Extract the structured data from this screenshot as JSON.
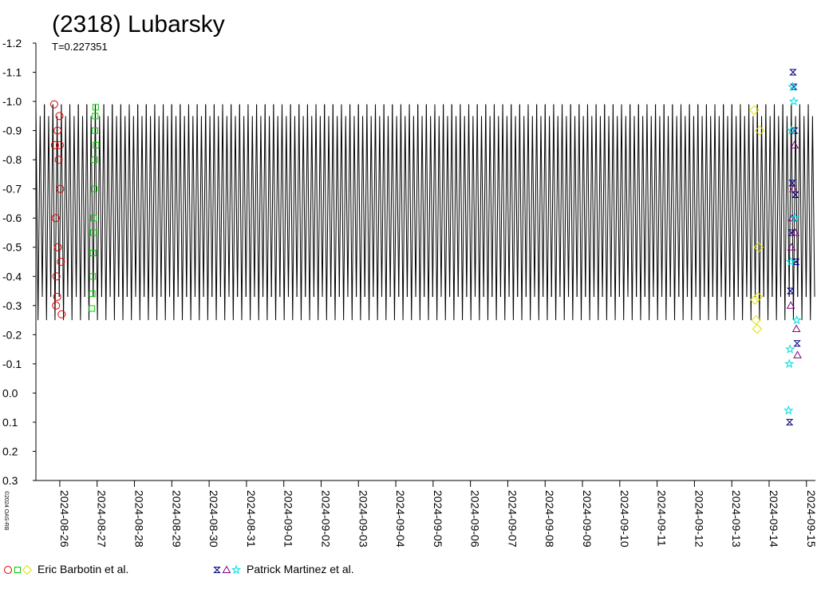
{
  "chart_data": {
    "type": "lightcurve",
    "title": "(2318) Lubarsky",
    "period": {
      "value": 0.227351,
      "label": "T=0.227351"
    },
    "credit": "©2024 OAS-RB",
    "xlim": [
      -0.64,
      20.24
    ],
    "xticks": [
      {
        "value": 0,
        "label": "2024-08-26"
      },
      {
        "value": 1,
        "label": "2024-08-27"
      },
      {
        "value": 2,
        "label": "2024-08-28"
      },
      {
        "value": 3,
        "label": "2024-08-29"
      },
      {
        "value": 4,
        "label": "2024-08-30"
      },
      {
        "value": 5,
        "label": "2024-08-31"
      },
      {
        "value": 6,
        "label": "2024-09-01"
      },
      {
        "value": 7,
        "label": "2024-09-02"
      },
      {
        "value": 8,
        "label": "2024-09-03"
      },
      {
        "value": 9,
        "label": "2024-09-04"
      },
      {
        "value": 10,
        "label": "2024-09-05"
      },
      {
        "value": 11,
        "label": "2024-09-06"
      },
      {
        "value": 12,
        "label": "2024-09-07"
      },
      {
        "value": 13,
        "label": "2024-09-08"
      },
      {
        "value": 14,
        "label": "2024-09-09"
      },
      {
        "value": 15,
        "label": "2024-09-10"
      },
      {
        "value": 16,
        "label": "2024-09-11"
      },
      {
        "value": 17,
        "label": "2024-09-12"
      },
      {
        "value": 18,
        "label": "2024-09-13"
      },
      {
        "value": 19,
        "label": "2024-09-14"
      },
      {
        "value": 20,
        "label": "2024-09-15"
      }
    ],
    "ylim": [
      -1.2,
      0.3
    ],
    "y_inverted": true,
    "yticks": [
      -1.2,
      -1.1,
      {
        "value": -1,
        "label": "-1.0"
      },
      -0.9,
      -0.8,
      -0.7,
      -0.6,
      -0.5,
      -0.4,
      -0.3,
      -0.2,
      -0.1,
      {
        "value": 0,
        "label": "0.0"
      },
      0.1,
      0.2,
      0.3
    ],
    "model": {
      "color": "#000000",
      "phase": [
        0,
        0.25,
        0.5,
        0.75
      ],
      "values": [
        -0.99,
        -0.25,
        -0.95,
        -0.33
      ]
    },
    "observers": [
      {
        "name": "Eric Barbotin et al.",
        "series": [
          {
            "marker": "circle",
            "color": "#dd0000",
            "x": [
              -0.15,
              -0.13,
              -0.11,
              -0.09,
              -0.07,
              -0.05,
              -0.03,
              -0.01,
              0.01,
              0.03,
              0.05,
              -0.1,
              -0.06,
              0.0
            ],
            "values": [
              -0.99,
              -0.85,
              -0.6,
              -0.4,
              -0.33,
              -0.5,
              -0.8,
              -0.95,
              -0.7,
              -0.45,
              -0.27,
              -0.3,
              -0.9,
              -0.85
            ]
          },
          {
            "marker": "square",
            "color": "#00cc00",
            "x": [
              0.86,
              0.87,
              0.88,
              0.89,
              0.9,
              0.91,
              0.92,
              0.93,
              0.94,
              0.95,
              0.96,
              0.97
            ],
            "values": [
              -0.29,
              -0.34,
              -0.4,
              -0.48,
              -0.55,
              -0.6,
              -0.7,
              -0.8,
              -0.9,
              -0.95,
              -0.98,
              -0.85
            ]
          },
          {
            "marker": "diamond",
            "color": "#e0e000",
            "x": [
              18.6,
              18.62,
              18.65,
              18.68,
              18.7,
              18.72,
              18.75
            ],
            "values": [
              -0.97,
              -0.32,
              -0.25,
              -0.22,
              -0.33,
              -0.5,
              -0.9
            ]
          }
        ]
      },
      {
        "name": "Patrick Martinez et al.",
        "series": [
          {
            "marker": "bowtie",
            "color": "#000080",
            "x": [
              19.55,
              19.57,
              19.6,
              19.62,
              19.64,
              19.66,
              19.68,
              19.7,
              19.72,
              19.75
            ],
            "values": [
              0.1,
              -0.35,
              -0.55,
              -0.72,
              -1.1,
              -1.05,
              -0.9,
              -0.68,
              -0.45,
              -0.17
            ]
          },
          {
            "marker": "triangle",
            "color": "#800080",
            "x": [
              19.58,
              19.6,
              19.62,
              19.65,
              19.68,
              19.7,
              19.73,
              19.76
            ],
            "values": [
              -0.3,
              -0.5,
              -0.6,
              -0.7,
              -0.85,
              -0.55,
              -0.22,
              -0.13
            ]
          },
          {
            "marker": "star",
            "color": "#00dddd",
            "x": [
              19.52,
              19.54,
              19.56,
              19.58,
              19.6,
              19.63,
              19.66,
              19.7,
              19.74
            ],
            "values": [
              0.06,
              -0.1,
              -0.15,
              -0.45,
              -0.9,
              -1.05,
              -1.0,
              -0.6,
              -0.25
            ]
          }
        ]
      }
    ]
  }
}
